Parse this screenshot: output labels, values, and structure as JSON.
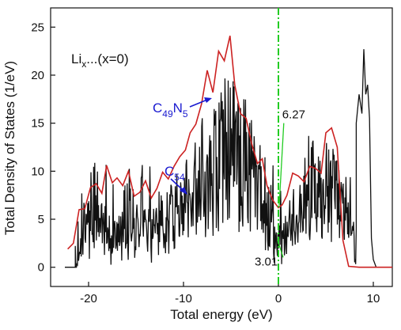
{
  "chart_data": {
    "type": "line",
    "title": "",
    "xlabel": "Total energy (eV)",
    "ylabel": "Total Density of States (1/eV)",
    "xlim": [
      -24,
      12
    ],
    "ylim": [
      -2,
      27
    ],
    "xticks": [
      -20,
      -10,
      0,
      10
    ],
    "yticks": [
      0,
      5,
      10,
      15,
      20,
      25
    ],
    "grid": false,
    "fermi_level_x": 0,
    "fermi_color": "#22cc22",
    "panel_label": {
      "main": "Li",
      "sub": "x",
      "rest": "...(x=0)"
    },
    "series": [
      {
        "name": "C49N5",
        "label_main": "C",
        "label_sub1": "49",
        "label_mid": "N",
        "label_sub2": "5",
        "color": "#cc2222",
        "points": [
          [
            -22.2,
            1.9
          ],
          [
            -21.6,
            2.5
          ],
          [
            -21.0,
            6.0
          ],
          [
            -20.4,
            6.1
          ],
          [
            -19.8,
            8.3
          ],
          [
            -19.2,
            8.7
          ],
          [
            -18.6,
            7.7
          ],
          [
            -18.1,
            10.6
          ],
          [
            -17.5,
            8.8
          ],
          [
            -17.0,
            9.3
          ],
          [
            -16.4,
            8.5
          ],
          [
            -15.8,
            10.0
          ],
          [
            -15.2,
            7.4
          ],
          [
            -14.6,
            7.8
          ],
          [
            -14.0,
            9.0
          ],
          [
            -13.4,
            7.2
          ],
          [
            -12.8,
            8.2
          ],
          [
            -12.2,
            9.9
          ],
          [
            -11.6,
            9.2
          ],
          [
            -11.0,
            10.5
          ],
          [
            -10.4,
            11.5
          ],
          [
            -9.8,
            12.2
          ],
          [
            -9.3,
            14.0
          ],
          [
            -8.7,
            14.9
          ],
          [
            -8.1,
            17.0
          ],
          [
            -7.5,
            20.5
          ],
          [
            -6.9,
            18.2
          ],
          [
            -6.3,
            22.5
          ],
          [
            -5.7,
            21.5
          ],
          [
            -5.1,
            24.1
          ],
          [
            -4.6,
            19.0
          ],
          [
            -4.0,
            16.0
          ],
          [
            -3.4,
            15.5
          ],
          [
            -2.8,
            12.8
          ],
          [
            -2.2,
            10.8
          ],
          [
            -1.7,
            11.3
          ],
          [
            -1.2,
            8.5
          ],
          [
            -0.6,
            7.0
          ],
          [
            0.0,
            6.2
          ],
          [
            0.4,
            6.5
          ],
          [
            0.9,
            7.5
          ],
          [
            1.5,
            9.8
          ],
          [
            2.1,
            9.5
          ],
          [
            2.7,
            8.9
          ],
          [
            3.3,
            10.5
          ],
          [
            3.9,
            10.3
          ],
          [
            4.5,
            9.8
          ],
          [
            5.0,
            14.0
          ],
          [
            5.6,
            14.5
          ],
          [
            6.2,
            12.5
          ],
          [
            6.8,
            2.8
          ],
          [
            7.4,
            0.1
          ],
          [
            8.5,
            0.0
          ],
          [
            9.5,
            0.0
          ],
          [
            10.5,
            0.0
          ],
          [
            12.0,
            0.0
          ]
        ]
      },
      {
        "name": "C54",
        "label_main": "C",
        "label_sub1": "54",
        "color": "#111111",
        "baseline_start": -22.5,
        "baseline_end": -21.4,
        "dense_start": -21.4,
        "dense_end": 8.2,
        "key_points": [
          [
            -21.4,
            0.0
          ],
          [
            -20.5,
            4.0
          ],
          [
            -19.5,
            5.0
          ],
          [
            -18.5,
            4.0
          ],
          [
            -17.5,
            3.5
          ],
          [
            -16.5,
            3.5
          ],
          [
            -15.5,
            4.0
          ],
          [
            -14.5,
            4.5
          ],
          [
            -13.5,
            4.5
          ],
          [
            -12.5,
            5.0
          ],
          [
            -11.5,
            5.5
          ],
          [
            -10.5,
            6.0
          ],
          [
            -9.5,
            7.0
          ],
          [
            -8.5,
            8.5
          ],
          [
            -7.5,
            9.5
          ],
          [
            -6.5,
            11.0
          ],
          [
            -5.5,
            13.0
          ],
          [
            -4.5,
            13.0
          ],
          [
            -3.5,
            11.5
          ],
          [
            -2.5,
            10.0
          ],
          [
            -1.5,
            8.0
          ],
          [
            -0.5,
            4.0
          ],
          [
            0.0,
            3.0
          ],
          [
            0.5,
            3.5
          ],
          [
            1.5,
            5.0
          ],
          [
            2.5,
            6.0
          ],
          [
            3.5,
            7.0
          ],
          [
            4.5,
            7.5
          ],
          [
            5.5,
            8.0
          ],
          [
            6.5,
            7.0
          ],
          [
            7.5,
            4.0
          ],
          [
            8.2,
            3.0
          ]
        ],
        "high_segment": [
          [
            8.2,
            15.0
          ],
          [
            8.5,
            18.0
          ],
          [
            8.8,
            16.0
          ],
          [
            9.0,
            22.7
          ],
          [
            9.2,
            18.0
          ],
          [
            9.4,
            19.0
          ],
          [
            9.6,
            15.5
          ],
          [
            9.8,
            3.0
          ],
          [
            10.0,
            0.8
          ],
          [
            10.3,
            0.0
          ],
          [
            12.0,
            0.0
          ]
        ]
      }
    ],
    "annotations": [
      {
        "text": "6.27",
        "x": 0,
        "y": 6.27,
        "text_x": 0.4,
        "text_y": 15.5
      },
      {
        "text": "3.01",
        "x": 0,
        "y": 3.01,
        "text_x": -2.5,
        "text_y": 0.2
      }
    ]
  }
}
